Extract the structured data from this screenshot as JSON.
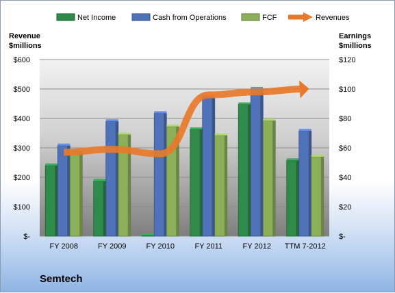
{
  "chart_data": {
    "type": "bar",
    "categories": [
      "FY 2008",
      "FY 2009",
      "FY 2010",
      "FY 2011",
      "FY 2012",
      "TTM 7-2012"
    ],
    "series": [
      {
        "name": "Net Income",
        "axis": "right",
        "color": "#2e8b4a",
        "values": [
          48,
          37.5,
          0.5,
          72.5,
          89.5,
          51.5
        ]
      },
      {
        "name": "Cash from Operations",
        "axis": "right",
        "color": "#4f72b8",
        "values": [
          61.5,
          78,
          83.5,
          94.5,
          100,
          71.5
        ]
      },
      {
        "name": "FCF",
        "axis": "right",
        "color": "#8cb05a",
        "values": [
          58,
          69,
          74.5,
          68.5,
          78.5,
          54
        ]
      },
      {
        "name": "Revenues",
        "axis": "left",
        "type": "line",
        "color": "#e8792a",
        "values": [
          285,
          295,
          280,
          480,
          490,
          500
        ]
      }
    ],
    "left_axis": {
      "title_line1": "Revenue",
      "title_line2": "$millions",
      "min": 0,
      "max": 600,
      "ticks": [
        "$-",
        "$100",
        "$200",
        "$300",
        "$400",
        "$500",
        "$600"
      ]
    },
    "right_axis": {
      "title_line1": "Earnings",
      "title_line2": "$millions",
      "min": 0,
      "max": 120,
      "ticks": [
        "$-",
        "$20",
        "$40",
        "$60",
        "$80",
        "$100",
        "$120"
      ]
    },
    "legend_position": "top",
    "grid": true
  },
  "company_name": "Semtech"
}
